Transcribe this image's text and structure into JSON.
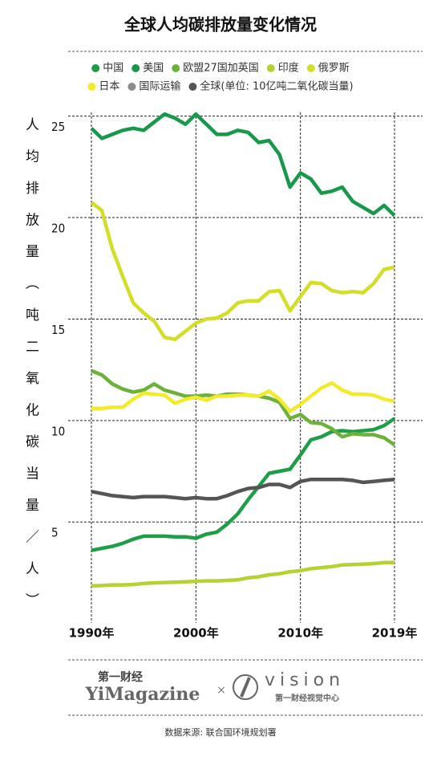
{
  "chart_data": {
    "type": "line",
    "title": "全球人均碳排放量变化情况",
    "y_label": "人均排放量（吨二氧化碳当量／人）",
    "x": [
      1990,
      1991,
      1992,
      1993,
      1994,
      1995,
      1996,
      1997,
      1998,
      1999,
      2000,
      2001,
      2002,
      2003,
      2004,
      2005,
      2006,
      2007,
      2008,
      2009,
      2010,
      2011,
      2012,
      2013,
      2014,
      2015,
      2016,
      2017,
      2018,
      2019
    ],
    "xlim": [
      1990,
      2019
    ],
    "xticks": [
      {
        "value": 1990,
        "label": "1990年"
      },
      {
        "value": 2000,
        "label": "2000年"
      },
      {
        "value": 2010,
        "label": "2010年"
      },
      {
        "value": 2019,
        "label": "2019年"
      }
    ],
    "ylim": [
      0.5,
      25.5
    ],
    "yticks": [
      5,
      10,
      15,
      20,
      25
    ],
    "grid": true,
    "legend": "top",
    "series": [
      {
        "name": "中国",
        "color": "#1f9e48",
        "values": [
          3.6,
          3.7,
          3.8,
          3.95,
          4.15,
          4.3,
          4.3,
          4.3,
          4.27,
          4.27,
          4.2,
          4.4,
          4.5,
          4.9,
          5.4,
          6.1,
          6.75,
          7.4,
          7.5,
          7.6,
          8.3,
          9.05,
          9.2,
          9.45,
          9.5,
          9.45,
          9.5,
          9.55,
          9.75,
          10.1
        ]
      },
      {
        "name": "美国",
        "color": "#17984a",
        "values": [
          24.4,
          23.9,
          24.1,
          24.3,
          24.4,
          24.3,
          24.7,
          25.1,
          24.9,
          24.6,
          25.1,
          24.6,
          24.1,
          24.1,
          24.3,
          24.2,
          23.7,
          23.8,
          23.1,
          21.5,
          22.2,
          21.9,
          21.2,
          21.3,
          21.5,
          20.8,
          20.5,
          20.2,
          20.6,
          20.1
        ]
      },
      {
        "name": "欧盟27国加英国",
        "color": "#6cb23a",
        "values": [
          12.45,
          12.25,
          11.8,
          11.55,
          11.4,
          11.5,
          11.8,
          11.5,
          11.35,
          11.2,
          11.2,
          11.25,
          11.2,
          11.3,
          11.3,
          11.25,
          11.2,
          11.1,
          10.9,
          10.1,
          10.3,
          9.9,
          9.85,
          9.6,
          9.2,
          9.35,
          9.3,
          9.3,
          9.15,
          8.8
        ]
      },
      {
        "name": "印度",
        "color": "#b4d234",
        "values": [
          1.85,
          1.87,
          1.9,
          1.9,
          1.92,
          1.97,
          2.0,
          2.02,
          2.03,
          2.05,
          2.08,
          2.1,
          2.1,
          2.12,
          2.15,
          2.25,
          2.3,
          2.4,
          2.45,
          2.55,
          2.6,
          2.7,
          2.75,
          2.8,
          2.88,
          2.9,
          2.92,
          2.95,
          3.0,
          3.0
        ]
      },
      {
        "name": "俄罗斯",
        "color": "#d4dd27",
        "values": [
          20.75,
          20.35,
          18.45,
          17.1,
          15.8,
          15.3,
          14.9,
          14.1,
          14.0,
          14.4,
          14.8,
          15.0,
          15.05,
          15.3,
          15.8,
          15.9,
          15.9,
          16.35,
          16.4,
          15.4,
          16.1,
          16.8,
          16.75,
          16.4,
          16.3,
          16.35,
          16.3,
          16.75,
          17.45,
          17.55
        ]
      },
      {
        "name": "日本",
        "color": "#f4ea2c",
        "values": [
          10.6,
          10.6,
          10.65,
          10.65,
          11.05,
          11.35,
          11.3,
          11.25,
          10.85,
          11.05,
          11.15,
          11.0,
          11.2,
          11.2,
          11.25,
          11.25,
          11.2,
          11.45,
          11.05,
          10.45,
          10.8,
          11.2,
          11.6,
          11.85,
          11.5,
          11.3,
          11.3,
          11.25,
          11.05,
          10.95
        ]
      },
      {
        "name": "国际运输",
        "color": "#8c8c8c",
        "values": [
          null,
          null,
          null,
          null,
          null,
          null,
          null,
          null,
          null,
          null,
          null,
          null,
          null,
          null,
          null,
          null,
          null,
          null,
          null,
          null,
          null,
          null,
          null,
          null,
          null,
          null,
          null,
          null,
          null,
          null
        ]
      },
      {
        "name": "全球(单位: 10亿吨二氧化碳当量)",
        "color": "#555555",
        "values": [
          6.5,
          6.4,
          6.3,
          6.25,
          6.2,
          6.25,
          6.25,
          6.25,
          6.2,
          6.15,
          6.2,
          6.15,
          6.15,
          6.3,
          6.5,
          6.65,
          6.7,
          6.85,
          6.85,
          6.7,
          7.0,
          7.1,
          7.1,
          7.1,
          7.1,
          7.05,
          6.95,
          7.0,
          7.05,
          7.1
        ]
      }
    ]
  },
  "footer": {
    "brand_cn": "第一财经",
    "brand_en": "YiMagazine",
    "separator": "×",
    "vision": "vision",
    "vision_cn": "第一财经视觉中心",
    "source": "数据来源: 联合国环境规划署"
  }
}
